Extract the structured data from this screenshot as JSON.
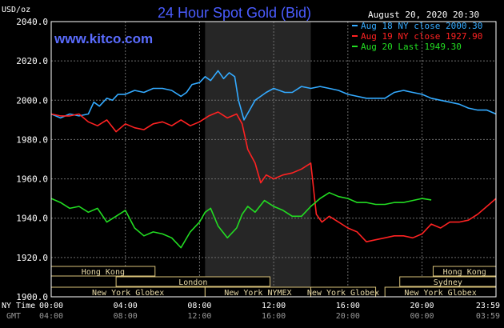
{
  "header": {
    "title": "24 Hour Spot Gold (Bid)",
    "site": "www.kitco.com",
    "timestamp": "August 20, 2020 20:30",
    "y_unit": "USD/oz"
  },
  "colors": {
    "background": "#000000",
    "frame": "#ffffff",
    "grid": "#6e6e6e",
    "title": "#4a5cff",
    "site": "#5a6cff",
    "shade": "#262626",
    "session_border": "#d9c27a",
    "session_text": "#e7d9a6",
    "aug18": "#33aaff",
    "aug19": "#ff2222",
    "aug20": "#22dd22"
  },
  "axis_footer": {
    "ny_label": "NY Time",
    "gmt_label": "GMT",
    "ny_ticks": [
      "00:00",
      "04:00",
      "08:00",
      "12:00",
      "16:00",
      "20:00",
      "23:59"
    ],
    "gmt_ticks": [
      "04:00",
      "08:00",
      "12:00",
      "16:00",
      "20:00",
      "00:00",
      "03:59"
    ]
  },
  "sessions": [
    {
      "label": "Hong Kong",
      "start": 0.0,
      "end": 5.6,
      "row": 0
    },
    {
      "label": "Hong Kong",
      "start": 20.6,
      "end": 23.99,
      "row": 0
    },
    {
      "label": "London",
      "start": 3.5,
      "end": 11.8,
      "row": 1
    },
    {
      "label": "Sydney",
      "start": 18.8,
      "end": 23.99,
      "row": 1
    },
    {
      "label": "New York Globex",
      "start": 0.0,
      "end": 8.3,
      "row": 2
    },
    {
      "label": "New York NYMEX",
      "start": 8.3,
      "end": 14.0,
      "row": 2
    },
    {
      "label": "New York Globex",
      "start": 14.0,
      "end": 17.5,
      "row": 2
    },
    {
      "label": "New York Globex",
      "start": 18.0,
      "end": 23.99,
      "row": 2
    }
  ],
  "chart_data": {
    "type": "line",
    "title": "24 Hour Spot Gold (Bid)",
    "ylabel": "USD/oz",
    "xlabel": "NY Time",
    "xlim": [
      0,
      23.99
    ],
    "ylim": [
      1900,
      2040
    ],
    "y_ticks": [
      "1900.0",
      "1920.0",
      "1940.0",
      "1960.0",
      "1980.0",
      "2000.0",
      "2020.0",
      "2040.0"
    ],
    "grid": true,
    "shaded_region": [
      8.3,
      14.0
    ],
    "legend_position": "top-right",
    "series": [
      {
        "name": "Aug 18 NY close 2000.30",
        "color": "#33aaff",
        "x": [
          0.0,
          0.5,
          1.0,
          1.5,
          2.0,
          2.3,
          2.6,
          3.0,
          3.3,
          3.6,
          4.0,
          4.5,
          5.0,
          5.5,
          6.0,
          6.5,
          7.0,
          7.3,
          7.6,
          8.0,
          8.3,
          8.6,
          9.0,
          9.3,
          9.6,
          9.9,
          10.1,
          10.4,
          10.7,
          11.0,
          11.3,
          11.6,
          12.0,
          12.3,
          12.6,
          13.0,
          13.5,
          14.0,
          14.5,
          15.0,
          15.5,
          16.0,
          16.5,
          17.0,
          17.5,
          18.0,
          18.5,
          19.0,
          19.5,
          20.0,
          20.5,
          21.0,
          21.5,
          22.0,
          22.5,
          23.0,
          23.5,
          23.99
        ],
        "y": [
          1993,
          1991,
          1993,
          1992,
          1993,
          1999,
          1997,
          2001,
          2000,
          2003,
          2003,
          2005,
          2004,
          2006,
          2006,
          2005,
          2002,
          2004,
          2008,
          2009,
          2012,
          2010,
          2015,
          2011,
          2014,
          2012,
          2000,
          1990,
          1995,
          2000,
          2002,
          2004,
          2006,
          2005,
          2004,
          2004,
          2007,
          2006,
          2007,
          2006,
          2005,
          2003,
          2002,
          2001,
          2001,
          2001,
          2004,
          2005,
          2004,
          2003,
          2001,
          2000,
          1999,
          1998,
          1996,
          1995,
          1995,
          1993
        ]
      },
      {
        "name": "Aug 19 NY close 1927.90",
        "color": "#ff2222",
        "x": [
          0.0,
          0.5,
          1.0,
          1.5,
          2.0,
          2.5,
          3.0,
          3.5,
          4.0,
          4.5,
          5.0,
          5.5,
          6.0,
          6.5,
          7.0,
          7.5,
          8.0,
          8.5,
          9.0,
          9.5,
          10.0,
          10.3,
          10.6,
          11.0,
          11.3,
          11.6,
          12.0,
          12.5,
          13.0,
          13.5,
          14.0,
          14.3,
          14.6,
          15.0,
          15.5,
          16.0,
          16.5,
          17.0,
          17.5,
          18.0,
          18.5,
          19.0,
          19.5,
          20.0,
          20.5,
          21.0,
          21.5,
          22.0,
          22.5,
          23.0,
          23.5,
          23.99
        ],
        "y": [
          1993,
          1992,
          1992,
          1993,
          1989,
          1987,
          1990,
          1984,
          1988,
          1986,
          1985,
          1988,
          1989,
          1987,
          1990,
          1987,
          1989,
          1992,
          1994,
          1991,
          1993,
          1988,
          1975,
          1968,
          1958,
          1962,
          1960,
          1962,
          1963,
          1965,
          1968,
          1942,
          1938,
          1941,
          1938,
          1935,
          1933,
          1928,
          1929,
          1930,
          1931,
          1931,
          1930,
          1932,
          1937,
          1935,
          1938,
          1938,
          1939,
          1942,
          1946,
          1950
        ]
      },
      {
        "name": "Aug 20 Last 1949.30",
        "color": "#22dd22",
        "x": [
          0.0,
          0.5,
          1.0,
          1.5,
          2.0,
          2.5,
          3.0,
          3.5,
          4.0,
          4.5,
          5.0,
          5.5,
          6.0,
          6.5,
          7.0,
          7.5,
          8.0,
          8.3,
          8.6,
          9.0,
          9.5,
          10.0,
          10.3,
          10.6,
          11.0,
          11.5,
          12.0,
          12.5,
          13.0,
          13.5,
          14.0,
          14.5,
          15.0,
          15.5,
          16.0,
          16.5,
          17.0,
          17.5,
          18.0,
          18.5,
          19.0,
          19.5,
          20.0,
          20.5
        ],
        "y": [
          1950,
          1948,
          1945,
          1946,
          1943,
          1945,
          1938,
          1941,
          1944,
          1935,
          1931,
          1933,
          1932,
          1930,
          1925,
          1933,
          1938,
          1943,
          1945,
          1936,
          1930,
          1935,
          1942,
          1946,
          1943,
          1949,
          1946,
          1944,
          1941,
          1941,
          1946,
          1950,
          1953,
          1951,
          1950,
          1948,
          1948,
          1947,
          1947,
          1948,
          1948,
          1949,
          1950,
          1949.3
        ]
      }
    ]
  }
}
